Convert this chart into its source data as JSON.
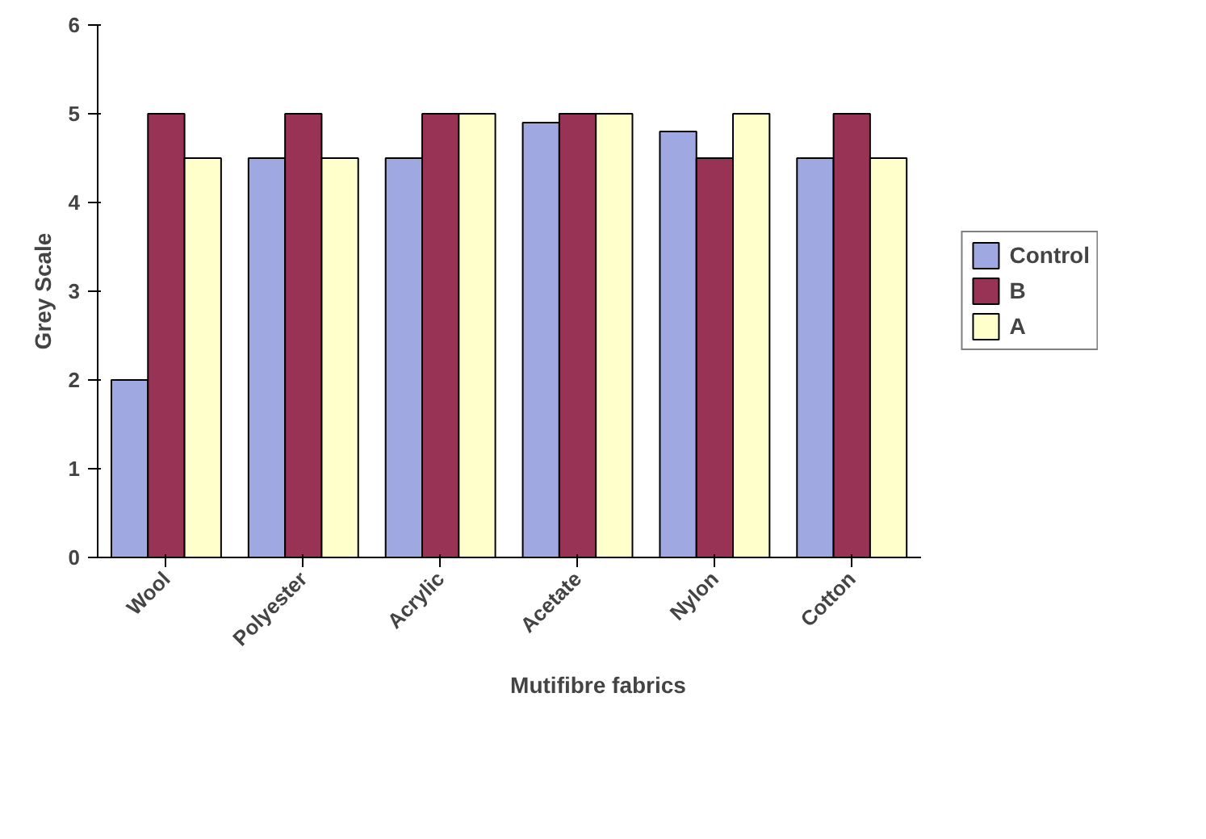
{
  "chart_data": {
    "type": "bar",
    "xlabel": "Mutifibre fabrics",
    "ylabel": "Grey Scale",
    "categories": [
      "Wool",
      "Polyester",
      "Acrylic",
      "Acetate",
      "Nylon",
      "Cotton"
    ],
    "series": [
      {
        "name": "Control",
        "color": "#9fa8e0",
        "values": [
          2,
          4.5,
          4.5,
          4.9,
          4.8,
          4.5
        ]
      },
      {
        "name": "B",
        "color": "#993355",
        "values": [
          5,
          5,
          5,
          5,
          4.5,
          5
        ]
      },
      {
        "name": "A",
        "color": "#ffffcc",
        "values": [
          4.5,
          4.5,
          5,
          5,
          5,
          4.5
        ]
      }
    ],
    "ylim": [
      0,
      6
    ],
    "yticks": [
      0,
      1,
      2,
      3,
      4,
      5,
      6
    ],
    "grid": false,
    "legend": "right"
  }
}
